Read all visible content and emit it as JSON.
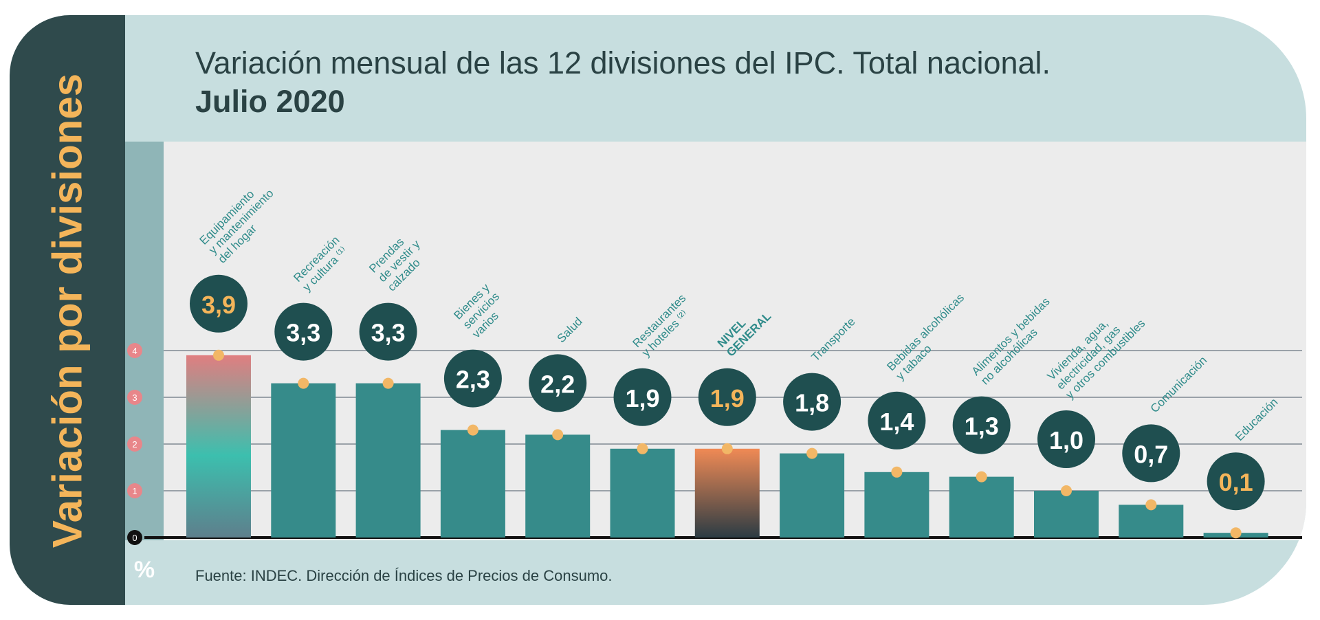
{
  "side_label": "Variación por divisiones",
  "unit_label": "%",
  "source": "Fuente: INDEC. Dirección de Índices de Precios de Consumo.",
  "colors": {
    "bar": "#368b8a",
    "bubble": "#1f4f50",
    "dot": "#f2b766",
    "tick_circle": "#e8868a",
    "highlight_value": "#f4b55a"
  },
  "chart_data": {
    "type": "bar",
    "title": "Variación mensual de las 12 divisiones del IPC. Total nacional.",
    "subtitle": "Julio 2020",
    "ylim": [
      0,
      4
    ],
    "yticks": [
      "0",
      "1",
      "2",
      "3",
      "4"
    ],
    "grid": true,
    "categories": [
      [
        "Equipamiento",
        "y mantenimiento",
        "del hogar"
      ],
      [
        "Recreación",
        "y cultura ⁽¹⁾"
      ],
      [
        "Prendas",
        "de vestir y",
        "calzado"
      ],
      [
        "Bienes y",
        "servicios",
        "varios"
      ],
      [
        "Salud"
      ],
      [
        "Restaurantes",
        "y hoteles ⁽²⁾"
      ],
      [
        "NIVEL",
        "GENERAL"
      ],
      [
        "Transporte"
      ],
      [
        "Bebidas alcohólicas",
        "y tabaco"
      ],
      [
        "Alimentos y bebidas",
        "no alcohólicas"
      ],
      [
        "Vivienda, agua,",
        "electricidad, gas",
        "y otros combustibles"
      ],
      [
        "Comunicación"
      ],
      [
        "Educación"
      ]
    ],
    "values": [
      3.9,
      3.3,
      3.3,
      2.3,
      2.2,
      1.9,
      1.9,
      1.8,
      1.4,
      1.3,
      1.0,
      0.7,
      0.1
    ],
    "value_labels": [
      "3,9",
      "3,3",
      "3,3",
      "2,3",
      "2,2",
      "1,9",
      "1,9",
      "1,8",
      "1,4",
      "1,3",
      "1,0",
      "0,7",
      "0,1"
    ],
    "highlighted": {
      "max": "Equipamiento y mantenimiento del hogar",
      "general": "NIVEL GENERAL"
    }
  }
}
